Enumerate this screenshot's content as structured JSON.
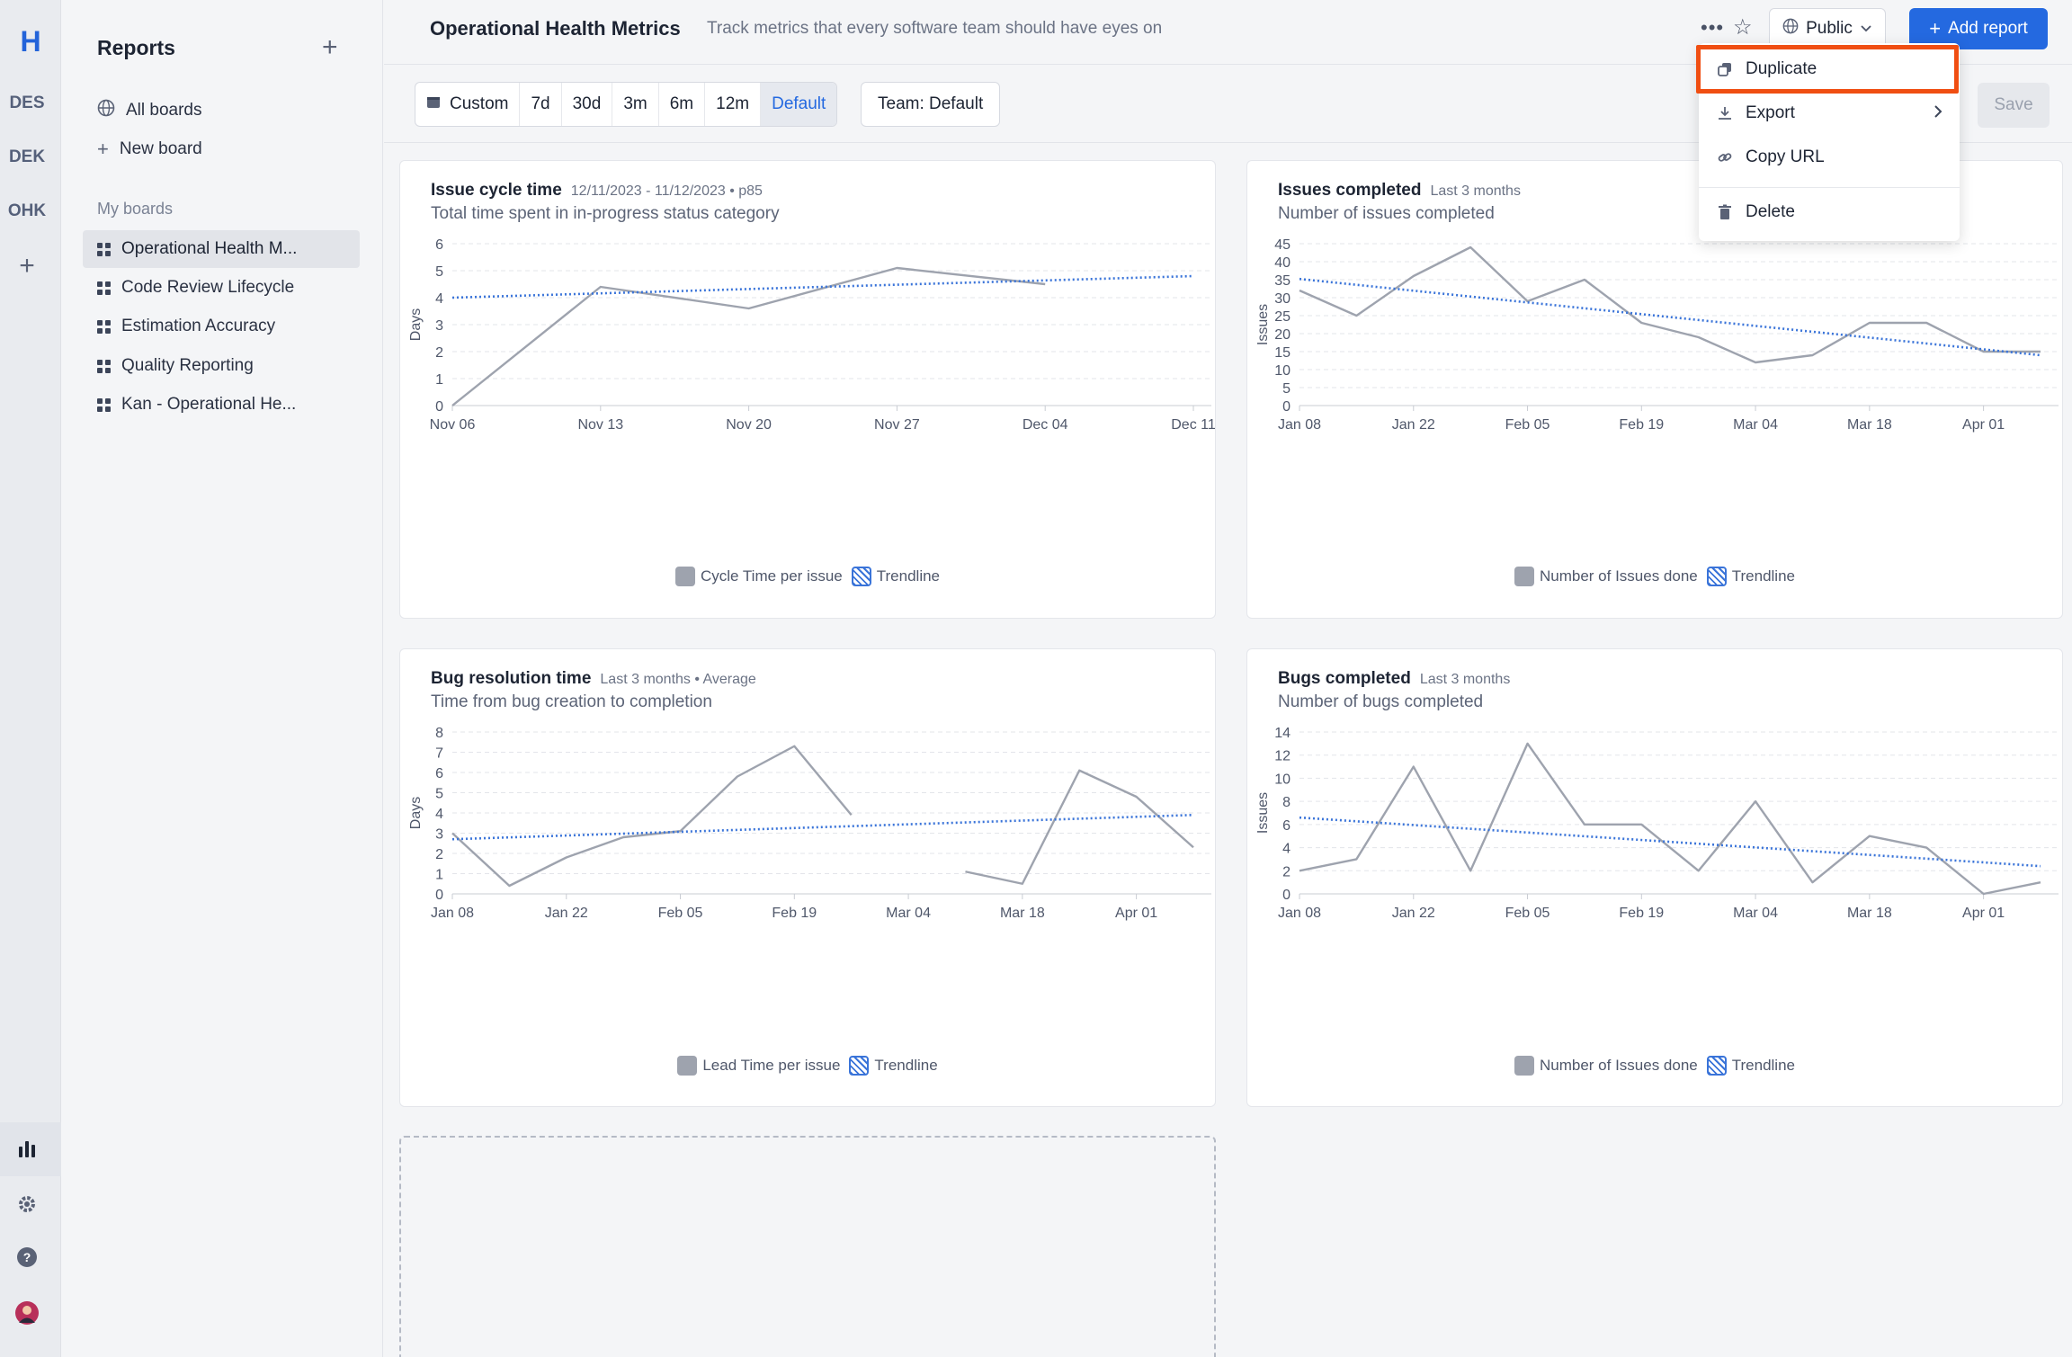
{
  "rail": {
    "logo": "H",
    "workspaces": [
      "DES",
      "DEK",
      "OHK"
    ]
  },
  "sidebar": {
    "title": "Reports",
    "links": [
      "All boards",
      "New board"
    ],
    "section_label": "My boards",
    "boards": [
      "Operational Health M...",
      "Code Review Lifecycle",
      "Estimation Accuracy",
      "Quality Reporting",
      "Kan - Operational He..."
    ]
  },
  "header": {
    "title": "Operational Health Metrics",
    "subtitle": "Track metrics that every software team should have eyes on",
    "visibility": "Public",
    "add_report": "Add report"
  },
  "toolbar": {
    "ranges": [
      "Custom",
      "7d",
      "30d",
      "3m",
      "6m",
      "12m",
      "Default"
    ],
    "active_range": "Default",
    "team": "Team: Default",
    "save": "Save"
  },
  "menu": {
    "items": [
      "Duplicate",
      "Export",
      "Copy URL",
      "Delete"
    ],
    "highlighted": "Duplicate"
  },
  "colors": {
    "accent": "#2469e0",
    "series": "#9ea3ae",
    "trend": "#3a74d9",
    "highlight": "#f04e12"
  },
  "chart_data": [
    {
      "type": "line",
      "title": "Issue cycle time",
      "meta": "12/11/2023 - 11/12/2023 • p85",
      "subtitle": "Total time spent in in-progress status category",
      "ylabel": "Days",
      "ylim": [
        0,
        6
      ],
      "yticks": [
        0,
        1,
        2,
        3,
        4,
        5,
        6
      ],
      "xlabels": [
        "Nov 06",
        "Nov 13",
        "Nov 20",
        "Nov 27",
        "Dec 04",
        "Dec 11"
      ],
      "series": [
        {
          "name": "Cycle Time per issue",
          "x": [
            0,
            1,
            2,
            3,
            4
          ],
          "values": [
            0,
            4.4,
            3.6,
            5.1,
            4.5
          ]
        },
        {
          "name": "Trendline",
          "x": [
            0,
            5
          ],
          "values": [
            4.0,
            4.8
          ]
        }
      ]
    },
    {
      "type": "line",
      "title": "Issues completed",
      "meta": "Last 3 months",
      "subtitle": "Number of issues completed",
      "ylabel": "Issues",
      "ylim": [
        0,
        45
      ],
      "yticks": [
        0,
        5,
        10,
        15,
        20,
        25,
        30,
        35,
        40,
        45
      ],
      "xlabels": [
        "Jan 08",
        "Jan 22",
        "Feb 05",
        "Feb 19",
        "Mar 04",
        "Mar 18",
        "Apr 01"
      ],
      "series": [
        {
          "name": "Number of Issues done",
          "x": [
            0,
            0.5,
            1,
            1.5,
            2,
            2.5,
            3,
            3.5,
            4,
            4.5,
            5,
            5.5,
            6,
            6.5
          ],
          "values": [
            32,
            25,
            36,
            44,
            29,
            35,
            23,
            19,
            12,
            14,
            23,
            23,
            15,
            15
          ]
        },
        {
          "name": "Trendline",
          "x": [
            0,
            6.5
          ],
          "values": [
            35.2,
            14
          ]
        }
      ]
    },
    {
      "type": "line",
      "title": "Bug resolution time",
      "meta": "Last 3 months • Average",
      "subtitle": "Time from bug creation to completion",
      "ylabel": "Days",
      "ylim": [
        0,
        8
      ],
      "yticks": [
        0,
        1,
        2,
        3,
        4,
        5,
        6,
        7,
        8
      ],
      "xlabels": [
        "Jan 08",
        "Jan 22",
        "Feb 05",
        "Feb 19",
        "Mar 04",
        "Mar 18",
        "Apr 01"
      ],
      "series": [
        {
          "name": "Lead Time per issue",
          "segments": [
            {
              "x": [
                0,
                0.5,
                1,
                1.5,
                2,
                2.5,
                3,
                3.5
              ],
              "values": [
                3,
                0.4,
                1.8,
                2.8,
                3.1,
                5.8,
                7.3,
                3.9
              ]
            },
            {
              "x": [
                4.5,
                5,
                5.5,
                6,
                6.5
              ],
              "values": [
                1.1,
                0.5,
                6.1,
                4.8,
                2.3
              ]
            }
          ]
        },
        {
          "name": "Trendline",
          "x": [
            0,
            6.5
          ],
          "values": [
            2.7,
            3.9
          ]
        }
      ]
    },
    {
      "type": "line",
      "title": "Bugs completed",
      "meta": "Last 3 months",
      "subtitle": "Number of bugs completed",
      "ylabel": "Issues",
      "ylim": [
        0,
        14
      ],
      "yticks": [
        0,
        2,
        4,
        6,
        8,
        10,
        12,
        14
      ],
      "xlabels": [
        "Jan 08",
        "Jan 22",
        "Feb 05",
        "Feb 19",
        "Mar 04",
        "Mar 18",
        "Apr 01"
      ],
      "series": [
        {
          "name": "Number of Issues done",
          "x": [
            0,
            0.5,
            1,
            1.5,
            2,
            2.5,
            3,
            3.5,
            4,
            4.5,
            5,
            5.5,
            6,
            6.5
          ],
          "values": [
            2,
            3,
            11,
            2,
            13,
            6,
            6,
            2,
            8,
            1,
            5,
            4,
            0,
            1
          ]
        },
        {
          "name": "Trendline",
          "x": [
            0,
            6.5
          ],
          "values": [
            6.6,
            2.4
          ]
        }
      ]
    }
  ]
}
